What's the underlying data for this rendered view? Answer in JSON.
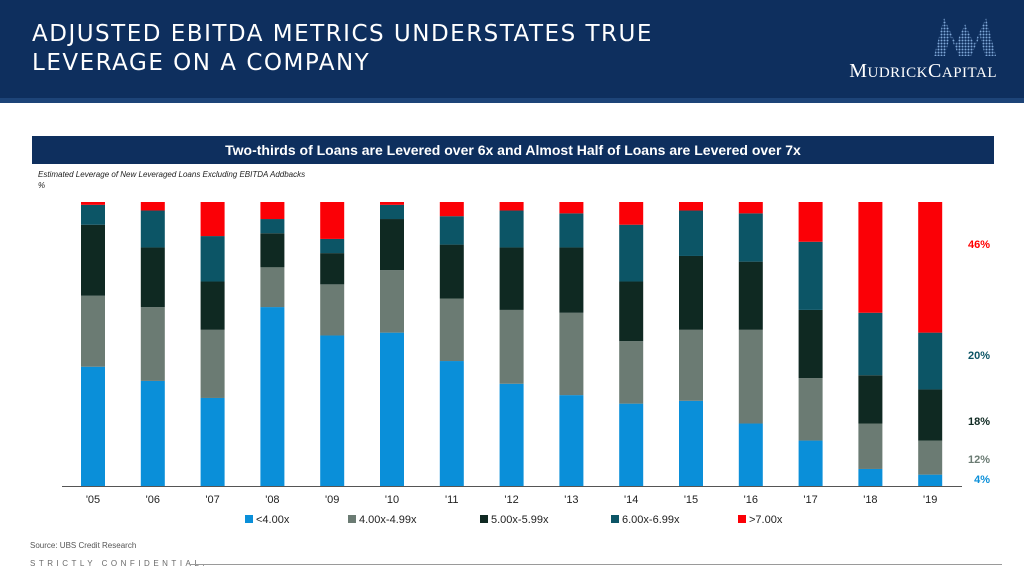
{
  "header": {
    "title_line1": "ADJUSTED EBITDA METRICS UNDERSTATES TRUE",
    "title_line2": "LEVERAGE ON A COMPANY",
    "logo_text": "MUDRICK CAPITAL",
    "logo_mark": "mudrick-mountain-logo"
  },
  "banner": "Two-thirds of Loans are Levered over 6x and Almost Half of Loans are Levered over 7x",
  "subtitle_line1": "Estimated Leverage of New Leveraged Loans Excluding EBITDA Addbacks",
  "subtitle_line2": "%",
  "footer": {
    "source": "Source: UBS Credit Research",
    "confidential": "STRICTLY CONFIDENTIAL."
  },
  "colors": {
    "header_bg": "#0e2f5e",
    "lt4": "#0a8fd9",
    "4to5": "#6b7b73",
    "5to6": "#0f2922",
    "6to7": "#0c5566",
    "gt7": "#fb0006"
  },
  "chart_data": {
    "type": "bar",
    "stacked": true,
    "categories": [
      "'05",
      "'06",
      "'07",
      "'08",
      "'09",
      "'10",
      "'11",
      "'12",
      "'13",
      "'14",
      "'15",
      "'16",
      "'17",
      "'18",
      "'19"
    ],
    "ylim": [
      0,
      100
    ],
    "series": [
      {
        "name": "<4.00x",
        "color": "#0a8fd9",
        "values": [
          42,
          37,
          31,
          63,
          53,
          54,
          44,
          36,
          32,
          29,
          30,
          22,
          16,
          6,
          4
        ]
      },
      {
        "name": "4.00x-4.99x",
        "color": "#6b7b73",
        "values": [
          25,
          26,
          24,
          14,
          18,
          22,
          22,
          26,
          29,
          22,
          25,
          33,
          22,
          16,
          12
        ]
      },
      {
        "name": "5.00x-5.99x",
        "color": "#0f2922",
        "values": [
          25,
          21,
          17,
          12,
          11,
          18,
          19,
          22,
          23,
          21,
          26,
          24,
          24,
          17,
          18
        ]
      },
      {
        "name": "6.00x-6.99x",
        "color": "#0c5566",
        "values": [
          7,
          13,
          16,
          5,
          5,
          5,
          10,
          13,
          12,
          20,
          16,
          17,
          24,
          22,
          20
        ]
      },
      {
        "name": ">7.00x",
        "color": "#fb0006",
        "values": [
          1,
          3,
          12,
          6,
          13,
          1,
          5,
          3,
          4,
          8,
          3,
          4,
          14,
          39,
          46
        ]
      }
    ],
    "annotations": [
      {
        "label": "46%",
        "value": 46,
        "color": "#ff0000"
      },
      {
        "label": "20%",
        "value": 20,
        "color": "#0c5566"
      },
      {
        "label": "18%",
        "value": 18,
        "color": "#0f2922"
      },
      {
        "label": "12%",
        "value": 12,
        "color": "#6b7b73"
      },
      {
        "label": "4%",
        "value": 4,
        "color": "#0a8fd9"
      }
    ]
  }
}
